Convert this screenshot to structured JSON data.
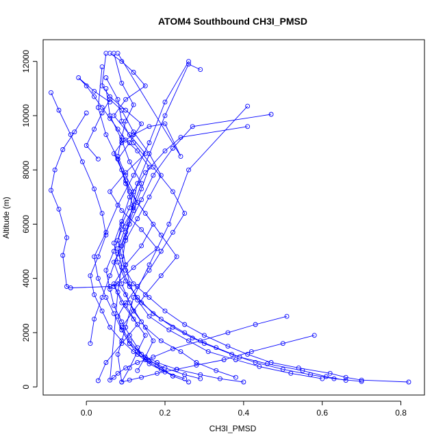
{
  "chart_data": {
    "type": "line",
    "title": "ATOM4 Southbound CH3I_PMSD",
    "xlabel": "CH3I_PMSD",
    "ylabel": "Altitude (m)",
    "xlim": [
      -0.11,
      0.86
    ],
    "ylim": [
      -300,
      12800
    ],
    "xticks": [
      0.0,
      0.2,
      0.4,
      0.6,
      0.8
    ],
    "xtick_labels": [
      "0.0",
      "0.2",
      "0.4",
      "0.6",
      "0.8"
    ],
    "yticks": [
      0,
      2000,
      4000,
      6000,
      8000,
      10000,
      12000
    ],
    "ytick_labels": [
      "0",
      "2000",
      "4000",
      "6000",
      "8000",
      "10000",
      "12000"
    ],
    "grid": false,
    "legend": "none",
    "marker": "open-circle",
    "line_color": "#0000ff",
    "series": [
      {
        "x": [
          0.82,
          0.7,
          0.66,
          0.62,
          0.54,
          0.47,
          0.41,
          0.36,
          0.3,
          0.25,
          0.2,
          0.16,
          0.12,
          0.1,
          0.09,
          0.08,
          0.09,
          0.11,
          0.12,
          0.1,
          0.08,
          0.09,
          0.1,
          0.12,
          0.09,
          0.07
        ],
        "y": [
          180,
          250,
          350,
          500,
          700,
          900,
          1200,
          1500,
          1900,
          2300,
          2800,
          3300,
          3800,
          4300,
          4800,
          5400,
          6000,
          6600,
          7200,
          7800,
          8500,
          9200,
          9800,
          10400,
          11200,
          12300
        ]
      },
      {
        "x": [
          0.7,
          0.63,
          0.57,
          0.5,
          0.43,
          0.37,
          0.3,
          0.25,
          0.19,
          0.14,
          0.11,
          0.09,
          0.08,
          0.1,
          0.12,
          0.14,
          0.11,
          0.09,
          0.06,
          0.05
        ],
        "y": [
          200,
          300,
          450,
          650,
          900,
          1200,
          1600,
          2000,
          2500,
          3100,
          3700,
          4400,
          5100,
          5900,
          6700,
          7500,
          8300,
          9100,
          10000,
          11000
        ]
      },
      {
        "x": [
          0.66,
          0.61,
          0.55,
          0.46,
          0.39,
          0.33,
          0.27,
          0.22,
          0.17,
          0.13,
          0.1,
          0.08,
          0.07,
          0.09,
          0.11,
          0.15,
          0.2,
          0.24,
          0.41
        ],
        "y": [
          240,
          380,
          600,
          850,
          1100,
          1450,
          1800,
          2200,
          2700,
          3300,
          3900,
          4600,
          5300,
          6100,
          7000,
          7900,
          8700,
          9200,
          9600
        ]
      },
      {
        "x": [
          0.6,
          0.52,
          0.44,
          0.38,
          0.31,
          0.26,
          0.21,
          0.16,
          0.13,
          0.11,
          0.1,
          0.09,
          0.11,
          0.14,
          0.17,
          0.22,
          0.27,
          0.47
        ],
        "y": [
          300,
          500,
          750,
          1000,
          1300,
          1700,
          2100,
          2600,
          3200,
          3800,
          4500,
          5200,
          6000,
          6900,
          7800,
          8800,
          9600,
          10050
        ]
      },
      {
        "x": [
          0.58,
          0.5,
          0.42,
          0.35,
          0.28,
          0.23,
          0.18,
          0.14,
          0.11,
          0.09,
          0.08,
          0.1,
          0.12,
          0.16,
          0.21,
          0.26,
          0.41
        ],
        "y": [
          1900,
          1600,
          1300,
          1000,
          800,
          650,
          500,
          350,
          250,
          180,
          1200,
          2200,
          3300,
          4500,
          6000,
          8000,
          10350
        ]
      },
      {
        "x": [
          0.51,
          0.43,
          0.36,
          0.29,
          0.22,
          0.17,
          0.13,
          0.1,
          0.08,
          0.07,
          0.06,
          0.08,
          0.1,
          0.13,
          0.2,
          0.26,
          0.29
        ],
        "y": [
          2600,
          2300,
          2000,
          1700,
          1400,
          1100,
          900,
          700,
          500,
          350,
          250,
          3500,
          5500,
          7500,
          10000,
          11900,
          11700
        ]
      },
      {
        "x": [
          0.4,
          0.34,
          0.29,
          0.23,
          0.18,
          0.14,
          0.11,
          0.09,
          0.07,
          0.05,
          0.03,
          0.02,
          0.05,
          0.08,
          0.12,
          0.16,
          0.2,
          0.26
        ],
        "y": [
          180,
          300,
          450,
          650,
          900,
          1200,
          1600,
          2100,
          2700,
          3300,
          4000,
          4800,
          5700,
          6700,
          7800,
          9000,
          10500,
          12000
        ]
      },
      {
        "x": [
          0.38,
          0.33,
          0.28,
          0.24,
          0.19,
          0.15,
          0.12,
          0.1,
          0.08,
          0.06,
          -0.04,
          -0.05,
          -0.06,
          -0.05,
          -0.07,
          -0.09,
          -0.08,
          -0.06,
          -0.03,
          0.0
        ],
        "y": [
          350,
          600,
          900,
          1300,
          1700,
          2200,
          2800,
          3400,
          3800,
          3700,
          3650,
          3700,
          4850,
          5500,
          6550,
          7250,
          8000,
          8750,
          9400,
          10100
        ]
      },
      {
        "x": [
          0.29,
          0.25,
          0.2,
          0.16,
          0.12,
          0.09,
          0.06,
          0.04,
          0.02,
          0.01,
          0.03,
          0.05,
          0.04,
          0.02,
          -0.01,
          -0.04,
          -0.07,
          -0.09
        ],
        "y": [
          300,
          450,
          700,
          950,
          1300,
          1700,
          2200,
          2800,
          3400,
          4100,
          4800,
          5600,
          6400,
          7300,
          8300,
          9300,
          10200,
          10850
        ]
      },
      {
        "x": [
          0.26,
          0.22,
          0.19,
          0.15,
          0.13,
          0.11,
          0.09,
          0.07,
          0.06,
          0.05,
          0.07,
          0.09,
          0.12,
          0.1,
          0.08,
          0.05,
          0.03,
          0.04
        ],
        "y": [
          180,
          400,
          650,
          1000,
          1450,
          1900,
          2400,
          3000,
          3600,
          4300,
          5000,
          5800,
          6600,
          7500,
          8400,
          9300,
          10300,
          11800
        ]
      },
      {
        "x": [
          0.25,
          0.2,
          0.16,
          0.13,
          0.11,
          0.09,
          0.08,
          0.1,
          0.13,
          0.16,
          0.19,
          0.22,
          0.25,
          0.22,
          0.17,
          0.12,
          0.09,
          0.08,
          0.05
        ],
        "y": [
          300,
          550,
          850,
          1200,
          1600,
          2100,
          2600,
          3100,
          3700,
          4300,
          5000,
          5700,
          6400,
          7200,
          8100,
          9000,
          9800,
          10600,
          11400
        ]
      },
      {
        "x": [
          0.22,
          0.18,
          0.14,
          0.11,
          0.09,
          0.12,
          0.15,
          0.19,
          0.23,
          0.19,
          0.15,
          0.11,
          0.09,
          0.07,
          0.09,
          0.12,
          0.16,
          0.2,
          0.24,
          0.08
        ],
        "y": [
          400,
          800,
          1200,
          1700,
          2200,
          2800,
          3400,
          4100,
          4800,
          5600,
          6400,
          7200,
          8000,
          8600,
          9000,
          9300,
          9600,
          9700,
          8500,
          12300
        ]
      },
      {
        "x": [
          0.03,
          0.05,
          0.09,
          0.13,
          0.1,
          0.07,
          0.12,
          0.18,
          0.14,
          0.09,
          0.06,
          0.1,
          0.15,
          0.11,
          0.07,
          0.1,
          0.15,
          0.12,
          0.09,
          0.06
        ],
        "y": [
          230,
          900,
          1600,
          2300,
          3000,
          3700,
          4400,
          5100,
          5800,
          6500,
          7200,
          7900,
          8600,
          9300,
          10000,
          10600,
          11100,
          11600,
          12000,
          12300
        ]
      },
      {
        "x": [
          0.09,
          0.11,
          0.13,
          0.15,
          0.12,
          0.09,
          0.07,
          0.1,
          0.14,
          0.17,
          0.13,
          0.1,
          0.08,
          0.11,
          0.14,
          0.1,
          0.06,
          0.04,
          0.05
        ],
        "y": [
          180,
          700,
          1300,
          1900,
          2500,
          3100,
          3800,
          4500,
          5200,
          6000,
          6800,
          7600,
          8400,
          9000,
          9700,
          10200,
          10700,
          11100,
          12300
        ]
      },
      {
        "x": [
          0.01,
          0.02,
          0.04,
          0.06,
          0.08,
          0.1,
          0.12,
          0.14,
          0.16,
          0.13,
          0.1,
          0.08,
          0.06,
          0.04,
          0.02,
          0.0,
          -0.02,
          0.02,
          0.06
        ],
        "y": [
          1600,
          2500,
          3300,
          4100,
          4900,
          5700,
          6500,
          7300,
          8100,
          8700,
          9100,
          9500,
          9900,
          10300,
          10700,
          11100,
          11400,
          10900,
          10500
        ]
      },
      {
        "x": [
          0.13,
          0.15,
          0.17,
          0.14,
          0.11,
          0.09,
          0.07,
          0.1,
          0.13,
          0.16,
          0.19,
          0.16,
          0.12,
          0.09,
          0.06,
          0.04,
          0.02,
          0.0,
          0.03
        ],
        "y": [
          600,
          1100,
          1700,
          2400,
          3100,
          3800,
          4600,
          5400,
          6200,
          7000,
          7800,
          8600,
          9400,
          10200,
          10600,
          10100,
          9500,
          8900,
          8400
        ]
      }
    ]
  }
}
